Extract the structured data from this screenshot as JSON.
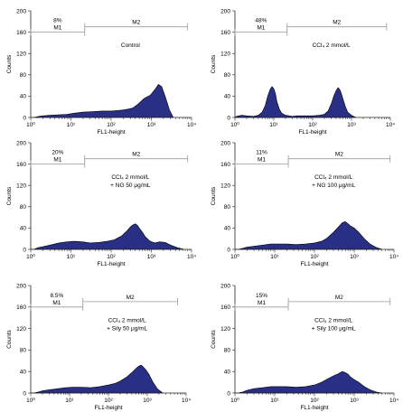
{
  "style": {
    "fill_color": "#2a2f86",
    "outline_color": "#000000",
    "gate_color": "#9a9a9a",
    "axis_color": "#222222"
  },
  "chart_data": [
    {
      "type": "area",
      "id": "control",
      "xlabel": "FL1-height",
      "ylabel": "Counts",
      "x_scale": "log",
      "xlim": [
        1,
        10000
      ],
      "ylim": [
        0,
        200
      ],
      "x_ticks": [
        1,
        10,
        100,
        1000,
        10000
      ],
      "x_tick_labels": [
        "10⁰",
        "10¹",
        "10²",
        "10³",
        "10⁴"
      ],
      "y_ticks": [
        0,
        40,
        80,
        120,
        160,
        200
      ],
      "annotation": [
        "Control"
      ],
      "markers": [
        {
          "name": "M1",
          "from": 1,
          "to": 22,
          "y": 160,
          "percent": "8%"
        },
        {
          "name": "M2",
          "from": 22,
          "to": 8000,
          "y": 170
        }
      ],
      "histogram": {
        "x": [
          1.2,
          1.6,
          2,
          3,
          5,
          8,
          12,
          20,
          35,
          60,
          100,
          150,
          200,
          280,
          350,
          450,
          550,
          650,
          750,
          850,
          950,
          1100,
          1300,
          1500,
          1800,
          2200,
          2800,
          3500
        ],
        "y": [
          0,
          2,
          3,
          4,
          5,
          6,
          8,
          10,
          11,
          12,
          12,
          13,
          14,
          16,
          18,
          24,
          30,
          35,
          38,
          40,
          42,
          48,
          55,
          62,
          58,
          40,
          15,
          0
        ]
      }
    },
    {
      "type": "area",
      "id": "ccl4",
      "xlabel": "FL1-height",
      "ylabel": "Counts",
      "x_scale": "log",
      "xlim": [
        1,
        10000
      ],
      "ylim": [
        0,
        200
      ],
      "x_ticks": [
        1,
        10,
        100,
        1000,
        10000
      ],
      "x_tick_labels": [
        "10⁰",
        "10¹",
        "10²",
        "10³",
        "10⁴"
      ],
      "y_ticks": [
        0,
        40,
        80,
        120,
        160,
        200
      ],
      "annotation": [
        "CCl₄ 2 mmol/L"
      ],
      "markers": [
        {
          "name": "M1",
          "from": 1,
          "to": 22,
          "y": 160,
          "percent": "48%"
        },
        {
          "name": "M2",
          "from": 22,
          "to": 8000,
          "y": 170
        }
      ],
      "histogram": {
        "x": [
          1.1,
          1.5,
          2,
          3,
          4,
          5,
          6,
          7,
          8,
          9,
          10,
          11,
          12,
          14,
          16,
          20,
          25,
          30,
          40,
          60,
          100,
          150,
          200,
          250,
          300,
          350,
          400,
          450,
          500,
          550,
          600,
          700,
          800,
          1000,
          1300
        ],
        "y": [
          2,
          4,
          3,
          2,
          4,
          10,
          22,
          40,
          52,
          58,
          54,
          45,
          30,
          15,
          8,
          4,
          3,
          2,
          3,
          3,
          3,
          4,
          6,
          12,
          25,
          40,
          50,
          56,
          52,
          45,
          35,
          20,
          10,
          4,
          0
        ]
      }
    },
    {
      "type": "area",
      "id": "ng50",
      "xlabel": "FL1-height",
      "ylabel": "Counts",
      "x_scale": "log",
      "xlim": [
        1,
        10000
      ],
      "ylim": [
        0,
        200
      ],
      "x_ticks": [
        1,
        10,
        100,
        1000,
        10000
      ],
      "x_tick_labels": [
        "10⁰",
        "10¹",
        "10²",
        "10³",
        "10⁴"
      ],
      "y_ticks": [
        0,
        40,
        80,
        120,
        160,
        200
      ],
      "annotation": [
        "CCl₄ 2 mmol/L",
        "+ NG 50 μg/mL"
      ],
      "markers": [
        {
          "name": "M1",
          "from": 1,
          "to": 22,
          "y": 160,
          "percent": "20%"
        },
        {
          "name": "M2",
          "from": 22,
          "to": 8000,
          "y": 170
        }
      ],
      "histogram": {
        "x": [
          1.2,
          1.5,
          2,
          3,
          5,
          8,
          12,
          20,
          30,
          50,
          80,
          120,
          180,
          250,
          300,
          350,
          400,
          450,
          500,
          600,
          700,
          900,
          1200,
          1600,
          2200,
          3000,
          4500,
          6500
        ],
        "y": [
          0,
          3,
          5,
          8,
          12,
          14,
          15,
          14,
          12,
          13,
          15,
          18,
          25,
          35,
          42,
          46,
          48,
          45,
          40,
          32,
          24,
          16,
          12,
          14,
          13,
          8,
          3,
          0
        ]
      }
    },
    {
      "type": "area",
      "id": "ng100",
      "xlabel": "FL1-height",
      "ylabel": "Counts",
      "x_scale": "log",
      "xlim": [
        1,
        10000
      ],
      "ylim": [
        0,
        200
      ],
      "x_ticks": [
        1,
        10,
        100,
        1000,
        10000
      ],
      "x_tick_labels": [
        "10⁰",
        "10¹",
        "10²",
        "10³",
        "10⁴"
      ],
      "y_ticks": [
        0,
        40,
        80,
        120,
        160,
        200
      ],
      "annotation": [
        "CCl₄ 2 mmol/L",
        "+ NG 100 μg/mL"
      ],
      "markers": [
        {
          "name": "M1",
          "from": 1,
          "to": 22,
          "y": 160,
          "percent": "11%"
        },
        {
          "name": "M2",
          "from": 22,
          "to": 8000,
          "y": 170
        }
      ],
      "histogram": {
        "x": [
          1.2,
          1.6,
          2,
          3,
          5,
          8,
          12,
          20,
          35,
          60,
          100,
          150,
          200,
          300,
          400,
          500,
          600,
          700,
          800,
          1000,
          1300,
          1800,
          2500,
          3500,
          5000
        ],
        "y": [
          0,
          2,
          4,
          6,
          8,
          10,
          10,
          10,
          9,
          10,
          12,
          15,
          20,
          32,
          42,
          50,
          52,
          48,
          44,
          40,
          32,
          20,
          10,
          4,
          0
        ]
      }
    },
    {
      "type": "area",
      "id": "sily50",
      "xlabel": "FL1-height",
      "ylabel": "Counts",
      "x_scale": "log",
      "xlim": [
        1,
        10000
      ],
      "ylim": [
        0,
        200
      ],
      "x_ticks": [
        1,
        10,
        100,
        1000,
        10000
      ],
      "x_tick_labels": [
        "10⁰",
        "10¹",
        "10²",
        "10³",
        "10⁴"
      ],
      "y_ticks": [
        0,
        40,
        80,
        120,
        160,
        200
      ],
      "annotation": [
        "CCl₄ 2 mmol/L",
        "+ Sily 50 μg/mL"
      ],
      "markers": [
        {
          "name": "M1",
          "from": 1,
          "to": 22,
          "y": 160,
          "percent": "8.5%"
        },
        {
          "name": "M2",
          "from": 22,
          "to": 6000,
          "y": 170
        }
      ],
      "histogram": {
        "x": [
          1.2,
          1.6,
          2,
          3,
          5,
          8,
          12,
          20,
          35,
          60,
          100,
          150,
          200,
          300,
          400,
          500,
          600,
          700,
          800,
          900,
          1100,
          1400,
          1800,
          2500
        ],
        "y": [
          0,
          2,
          4,
          6,
          8,
          10,
          11,
          11,
          10,
          12,
          15,
          18,
          22,
          30,
          38,
          45,
          50,
          52,
          48,
          44,
          35,
          20,
          8,
          0
        ]
      }
    },
    {
      "type": "area",
      "id": "sily100",
      "xlabel": "FL1-height",
      "ylabel": "Counts",
      "x_scale": "log",
      "xlim": [
        1,
        10000
      ],
      "ylim": [
        0,
        200
      ],
      "x_ticks": [
        1,
        10,
        100,
        1000,
        10000
      ],
      "x_tick_labels": [
        "10⁰",
        "10¹",
        "10²",
        "10³",
        "10⁴"
      ],
      "y_ticks": [
        0,
        40,
        80,
        120,
        160,
        200
      ],
      "annotation": [
        "CCl₄ 2 mmol/L",
        "+ Sily 100 μg/mL"
      ],
      "markers": [
        {
          "name": "M1",
          "from": 1,
          "to": 22,
          "y": 160,
          "percent": "15%"
        },
        {
          "name": "M2",
          "from": 22,
          "to": 8000,
          "y": 170
        }
      ],
      "histogram": {
        "x": [
          1.2,
          1.6,
          2,
          3,
          5,
          8,
          12,
          20,
          35,
          60,
          100,
          150,
          200,
          300,
          400,
          500,
          600,
          700,
          800,
          1000,
          1300,
          1800,
          2500,
          3500,
          5000
        ],
        "y": [
          0,
          2,
          5,
          8,
          10,
          12,
          12,
          12,
          11,
          12,
          15,
          20,
          25,
          32,
          36,
          40,
          38,
          35,
          30,
          25,
          20,
          12,
          6,
          2,
          0
        ]
      }
    }
  ]
}
